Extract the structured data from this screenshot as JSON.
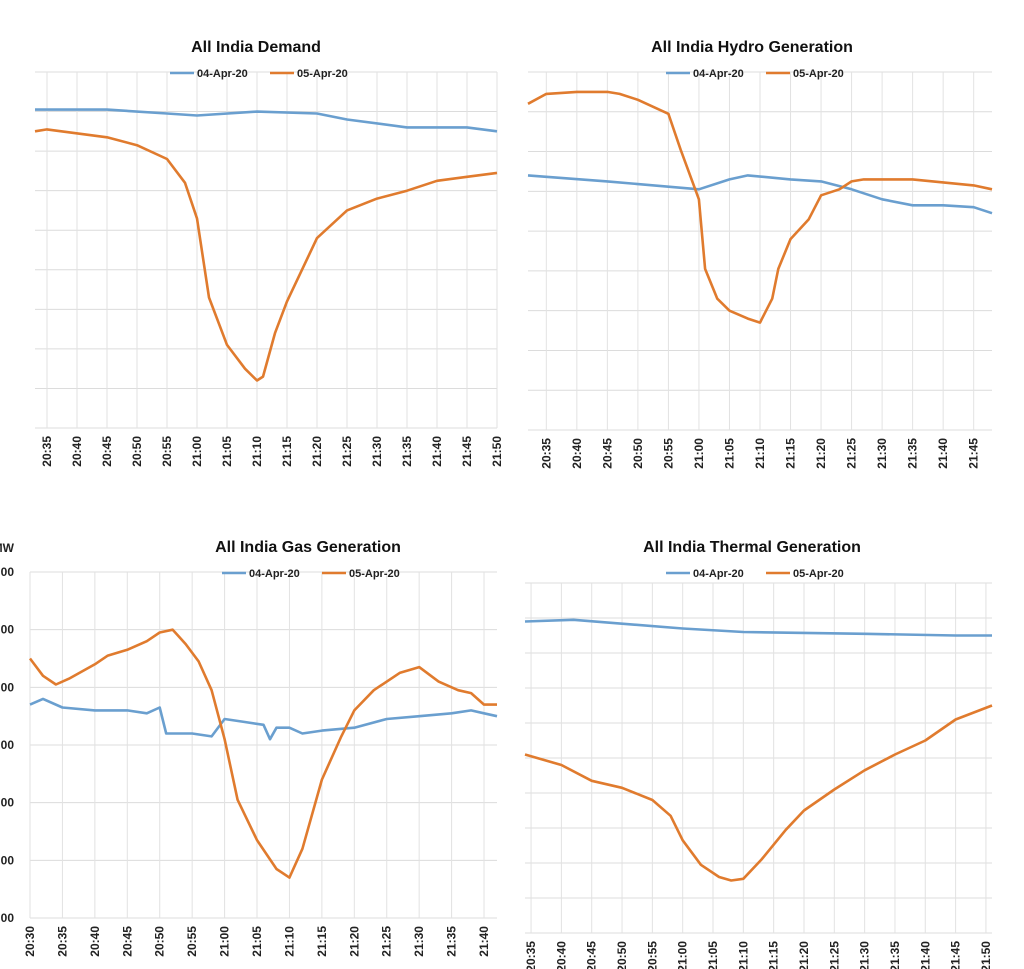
{
  "colors": {
    "04-Apr-20": "#6a9fcf",
    "05-Apr-20": "#e07b2e"
  },
  "chart_data": [
    {
      "type": "line",
      "title": "All India Demand",
      "xlim": [
        "20:33",
        "21:50"
      ],
      "ylim": [
        0,
        9
      ],
      "grid": true,
      "legend": "top",
      "xticks": [
        "20:35",
        "20:40",
        "20:45",
        "20:50",
        "20:55",
        "21:00",
        "21:05",
        "21:10",
        "21:15",
        "21:20",
        "21:25",
        "21:30",
        "21:35",
        "21:40",
        "21:45",
        "21:50"
      ],
      "yticks": [],
      "series": [
        {
          "name": "04-Apr-20",
          "x": [
            "20:33",
            "20:45",
            "20:55",
            "21:00",
            "21:10",
            "21:20",
            "21:25",
            "21:35",
            "21:45",
            "21:50"
          ],
          "y": [
            8.05,
            8.05,
            7.95,
            7.9,
            8.0,
            7.95,
            7.8,
            7.6,
            7.6,
            7.5
          ]
        },
        {
          "name": "05-Apr-20",
          "x": [
            "20:33",
            "20:35",
            "20:45",
            "20:50",
            "20:55",
            "20:58",
            "21:00",
            "21:02",
            "21:05",
            "21:08",
            "21:10",
            "21:11",
            "21:13",
            "21:15",
            "21:20",
            "21:25",
            "21:30",
            "21:35",
            "21:40",
            "21:45",
            "21:50"
          ],
          "y": [
            7.5,
            7.55,
            7.35,
            7.15,
            6.8,
            6.2,
            5.3,
            3.3,
            2.1,
            1.5,
            1.2,
            1.3,
            2.4,
            3.2,
            4.8,
            5.5,
            5.8,
            6.0,
            6.25,
            6.35,
            6.45
          ]
        }
      ]
    },
    {
      "type": "line",
      "title": "All India Hydro Generation",
      "xlim": [
        "20:32",
        "21:48"
      ],
      "ylim": [
        0,
        9
      ],
      "grid": true,
      "legend": "top",
      "xticks": [
        "20:35",
        "20:40",
        "20:45",
        "20:50",
        "20:55",
        "21:00",
        "21:05",
        "21:10",
        "21:15",
        "21:20",
        "21:25",
        "21:30",
        "21:35",
        "21:40",
        "21:45"
      ],
      "yticks": [],
      "series": [
        {
          "name": "04-Apr-20",
          "x": [
            "20:32",
            "20:45",
            "21:00",
            "21:05",
            "21:08",
            "21:15",
            "21:20",
            "21:25",
            "21:30",
            "21:35",
            "21:40",
            "21:45",
            "21:48"
          ],
          "y": [
            6.4,
            6.25,
            6.05,
            6.3,
            6.4,
            6.3,
            6.25,
            6.05,
            5.8,
            5.65,
            5.65,
            5.6,
            5.45
          ]
        },
        {
          "name": "05-Apr-20",
          "x": [
            "20:32",
            "20:35",
            "20:40",
            "20:45",
            "20:47",
            "20:50",
            "20:55",
            "20:57",
            "21:00",
            "21:01",
            "21:03",
            "21:05",
            "21:08",
            "21:10",
            "21:12",
            "21:13",
            "21:15",
            "21:18",
            "21:20",
            "21:23",
            "21:25",
            "21:27",
            "21:35",
            "21:45",
            "21:48"
          ],
          "y": [
            8.2,
            8.45,
            8.5,
            8.5,
            8.45,
            8.3,
            7.95,
            7.05,
            5.8,
            4.05,
            3.3,
            3.0,
            2.8,
            2.7,
            3.3,
            4.05,
            4.8,
            5.3,
            5.9,
            6.05,
            6.25,
            6.3,
            6.3,
            6.15,
            6.05
          ]
        }
      ]
    },
    {
      "type": "line",
      "title": "All India Gas Generation",
      "ylabel": "MW",
      "xlim": [
        "20:30",
        "21:42"
      ],
      "ylim": [
        0,
        6
      ],
      "grid": true,
      "legend": "top",
      "xticks": [
        "20:30",
        "20:35",
        "20:40",
        "20:45",
        "20:50",
        "20:55",
        "21:00",
        "21:05",
        "21:10",
        "21:15",
        "21:20",
        "21:25",
        "21:30",
        "21:35",
        "21:40"
      ],
      "yticks": [
        "00",
        "00",
        "00",
        "00",
        "00",
        "00",
        "00"
      ],
      "series": [
        {
          "name": "04-Apr-20",
          "x": [
            "20:30",
            "20:32",
            "20:35",
            "20:40",
            "20:45",
            "20:48",
            "20:50",
            "20:51",
            "20:55",
            "20:58",
            "21:00",
            "21:03",
            "21:06",
            "21:07",
            "21:08",
            "21:10",
            "21:12",
            "21:15",
            "21:20",
            "21:25",
            "21:30",
            "21:35",
            "21:38",
            "21:40",
            "21:42"
          ],
          "y": [
            3.7,
            3.8,
            3.65,
            3.6,
            3.6,
            3.55,
            3.65,
            3.2,
            3.2,
            3.15,
            3.45,
            3.4,
            3.35,
            3.1,
            3.3,
            3.3,
            3.2,
            3.25,
            3.3,
            3.45,
            3.5,
            3.55,
            3.6,
            3.55,
            3.5
          ]
        },
        {
          "name": "05-Apr-20",
          "x": [
            "20:30",
            "20:32",
            "20:34",
            "20:36",
            "20:40",
            "20:42",
            "20:45",
            "20:48",
            "20:50",
            "20:52",
            "20:54",
            "20:56",
            "20:58",
            "21:00",
            "21:02",
            "21:05",
            "21:08",
            "21:10",
            "21:12",
            "21:15",
            "21:18",
            "21:20",
            "21:23",
            "21:27",
            "21:30",
            "21:33",
            "21:36",
            "21:38",
            "21:40",
            "21:42"
          ],
          "y": [
            4.5,
            4.2,
            4.05,
            4.15,
            4.4,
            4.55,
            4.65,
            4.8,
            4.95,
            5.0,
            4.75,
            4.45,
            3.95,
            3.1,
            2.05,
            1.35,
            0.85,
            0.7,
            1.2,
            2.4,
            3.15,
            3.6,
            3.95,
            4.25,
            4.35,
            4.1,
            3.95,
            3.9,
            3.7,
            3.7
          ]
        }
      ]
    },
    {
      "type": "line",
      "title": "All India Thermal Generation",
      "xlim": [
        "20:34",
        "21:51"
      ],
      "ylim": [
        0,
        10
      ],
      "grid": true,
      "legend": "top",
      "xticks": [
        "20:35",
        "20:40",
        "20:45",
        "20:50",
        "20:55",
        "21:00",
        "21:05",
        "21:10",
        "21:15",
        "21:20",
        "21:25",
        "21:30",
        "21:35",
        "21:40",
        "21:45",
        "21:50"
      ],
      "yticks": [],
      "series": [
        {
          "name": "04-Apr-20",
          "x": [
            "20:34",
            "20:42",
            "21:00",
            "21:10",
            "21:30",
            "21:45",
            "21:51"
          ],
          "y": [
            8.9,
            8.95,
            8.7,
            8.6,
            8.55,
            8.5,
            8.5
          ]
        },
        {
          "name": "05-Apr-20",
          "x": [
            "20:34",
            "20:40",
            "20:45",
            "20:50",
            "20:55",
            "20:58",
            "21:00",
            "21:03",
            "21:06",
            "21:08",
            "21:10",
            "21:13",
            "21:17",
            "21:20",
            "21:25",
            "21:30",
            "21:35",
            "21:40",
            "21:45",
            "21:51"
          ],
          "y": [
            5.1,
            4.8,
            4.35,
            4.15,
            3.8,
            3.35,
            2.65,
            1.95,
            1.6,
            1.5,
            1.55,
            2.1,
            2.95,
            3.5,
            4.1,
            4.65,
            5.1,
            5.5,
            6.1,
            6.5
          ]
        }
      ]
    }
  ]
}
